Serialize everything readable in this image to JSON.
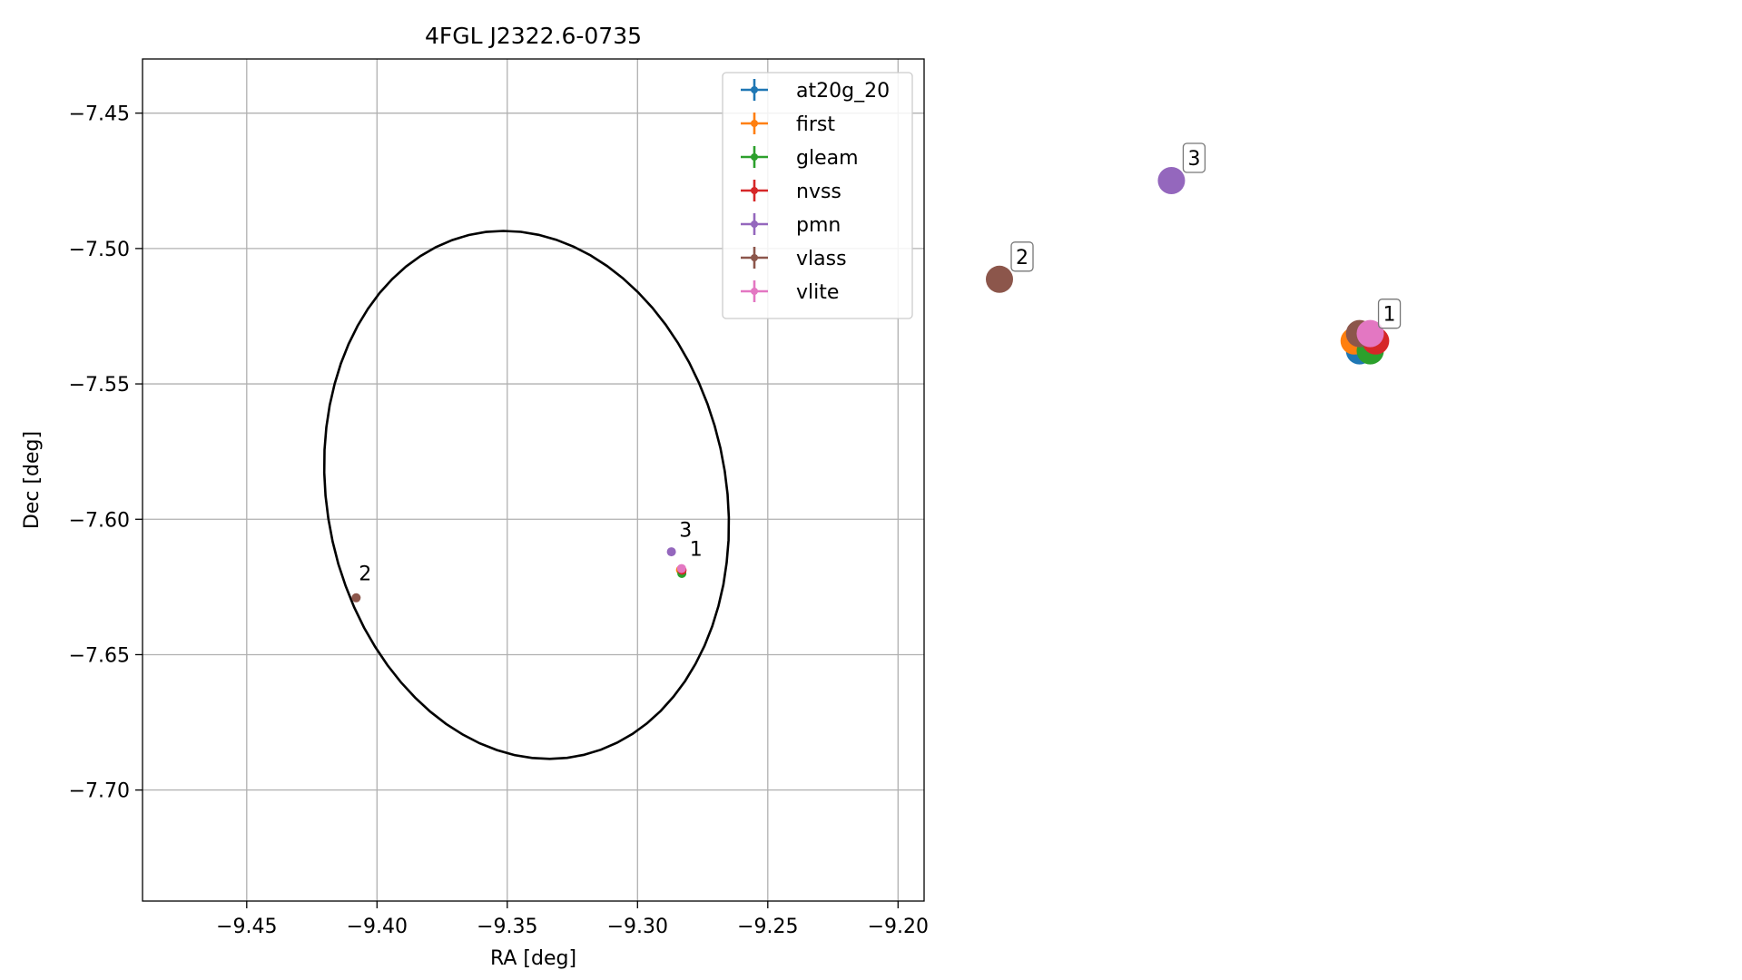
{
  "chart_data": [
    {
      "type": "scatter",
      "title": "4FGL J2322.6-0735",
      "xlabel": "RA [deg]",
      "ylabel": "Dec [deg]",
      "xlim": [
        -9.49,
        -9.19
      ],
      "ylim": [
        -7.741,
        -7.43
      ],
      "xticks": [
        -9.45,
        -9.4,
        -9.35,
        -9.3,
        -9.25,
        -9.2
      ],
      "xtick_labels": [
        "−9.45",
        "−9.40",
        "−9.35",
        "−9.30",
        "−9.25",
        "−9.20"
      ],
      "yticks": [
        -7.45,
        -7.5,
        -7.55,
        -7.6,
        -7.65,
        -7.7
      ],
      "ytick_labels": [
        "−7.45",
        "−7.50",
        "−7.55",
        "−7.60",
        "−7.65",
        "−7.70"
      ],
      "grid": true,
      "legend_position": "top-right",
      "series": [
        {
          "name": "at20g_20",
          "color": "#1f77b4",
          "points": [
            {
              "x": -9.2832,
              "y": -7.6185
            }
          ]
        },
        {
          "name": "first",
          "color": "#ff7f0e",
          "points": [
            {
              "x": -9.2835,
              "y": -7.6187
            }
          ]
        },
        {
          "name": "gleam",
          "color": "#2ca02c",
          "points": [
            {
              "x": -9.283,
              "y": -7.62
            }
          ]
        },
        {
          "name": "nvss",
          "color": "#d62728",
          "points": [
            {
              "x": -9.2829,
              "y": -7.6188
            }
          ]
        },
        {
          "name": "pmn",
          "color": "#9467bd",
          "points": [
            {
              "x": -9.287,
              "y": -7.612
            }
          ]
        },
        {
          "name": "vlass",
          "color": "#8c564b",
          "points": [
            {
              "x": -9.408,
              "y": -7.629
            }
          ]
        },
        {
          "name": "vlite",
          "color": "#e377c2",
          "points": [
            {
              "x": -9.2831,
              "y": -7.6182
            }
          ]
        }
      ],
      "annotations": [
        {
          "text": "1",
          "x": -9.28,
          "y": -7.6135
        },
        {
          "text": "2",
          "x": -9.407,
          "y": -7.6225
        },
        {
          "text": "3",
          "x": -9.284,
          "y": -7.6065
        }
      ],
      "ellipse": {
        "center": [
          -9.3426,
          -7.591
        ],
        "semi_major_deg": 0.0985,
        "semi_minor_deg": 0.0764,
        "angle_deg": -77,
        "color": "#000000"
      }
    },
    {
      "type": "graph",
      "nodes": [
        {
          "series": "at20g_20",
          "color": "#1f77b4",
          "gx": 0.67,
          "gy": 0.31
        },
        {
          "series": "first",
          "color": "#ff7f0e",
          "gx": 0.66,
          "gy": 0.35
        },
        {
          "series": "gleam",
          "color": "#2ca02c",
          "gx": 0.69,
          "gy": 0.31
        },
        {
          "series": "nvss",
          "color": "#d62728",
          "gx": 0.7,
          "gy": 0.35
        },
        {
          "series": "vlass",
          "color": "#8c564b",
          "gx": 0.67,
          "gy": 0.38
        },
        {
          "series": "vlite",
          "color": "#e377c2",
          "gx": 0.69,
          "gy": 0.38
        },
        {
          "series": "vlass",
          "color": "#8c564b",
          "gx": 0.0,
          "gy": 0.6,
          "label": "2"
        },
        {
          "series": "pmn",
          "color": "#9467bd",
          "gx": 0.32,
          "gy": 1.0,
          "label": "3"
        }
      ],
      "clusters": [
        {
          "label": "1",
          "members": [
            0,
            1,
            2,
            3,
            4,
            5
          ]
        }
      ]
    }
  ]
}
